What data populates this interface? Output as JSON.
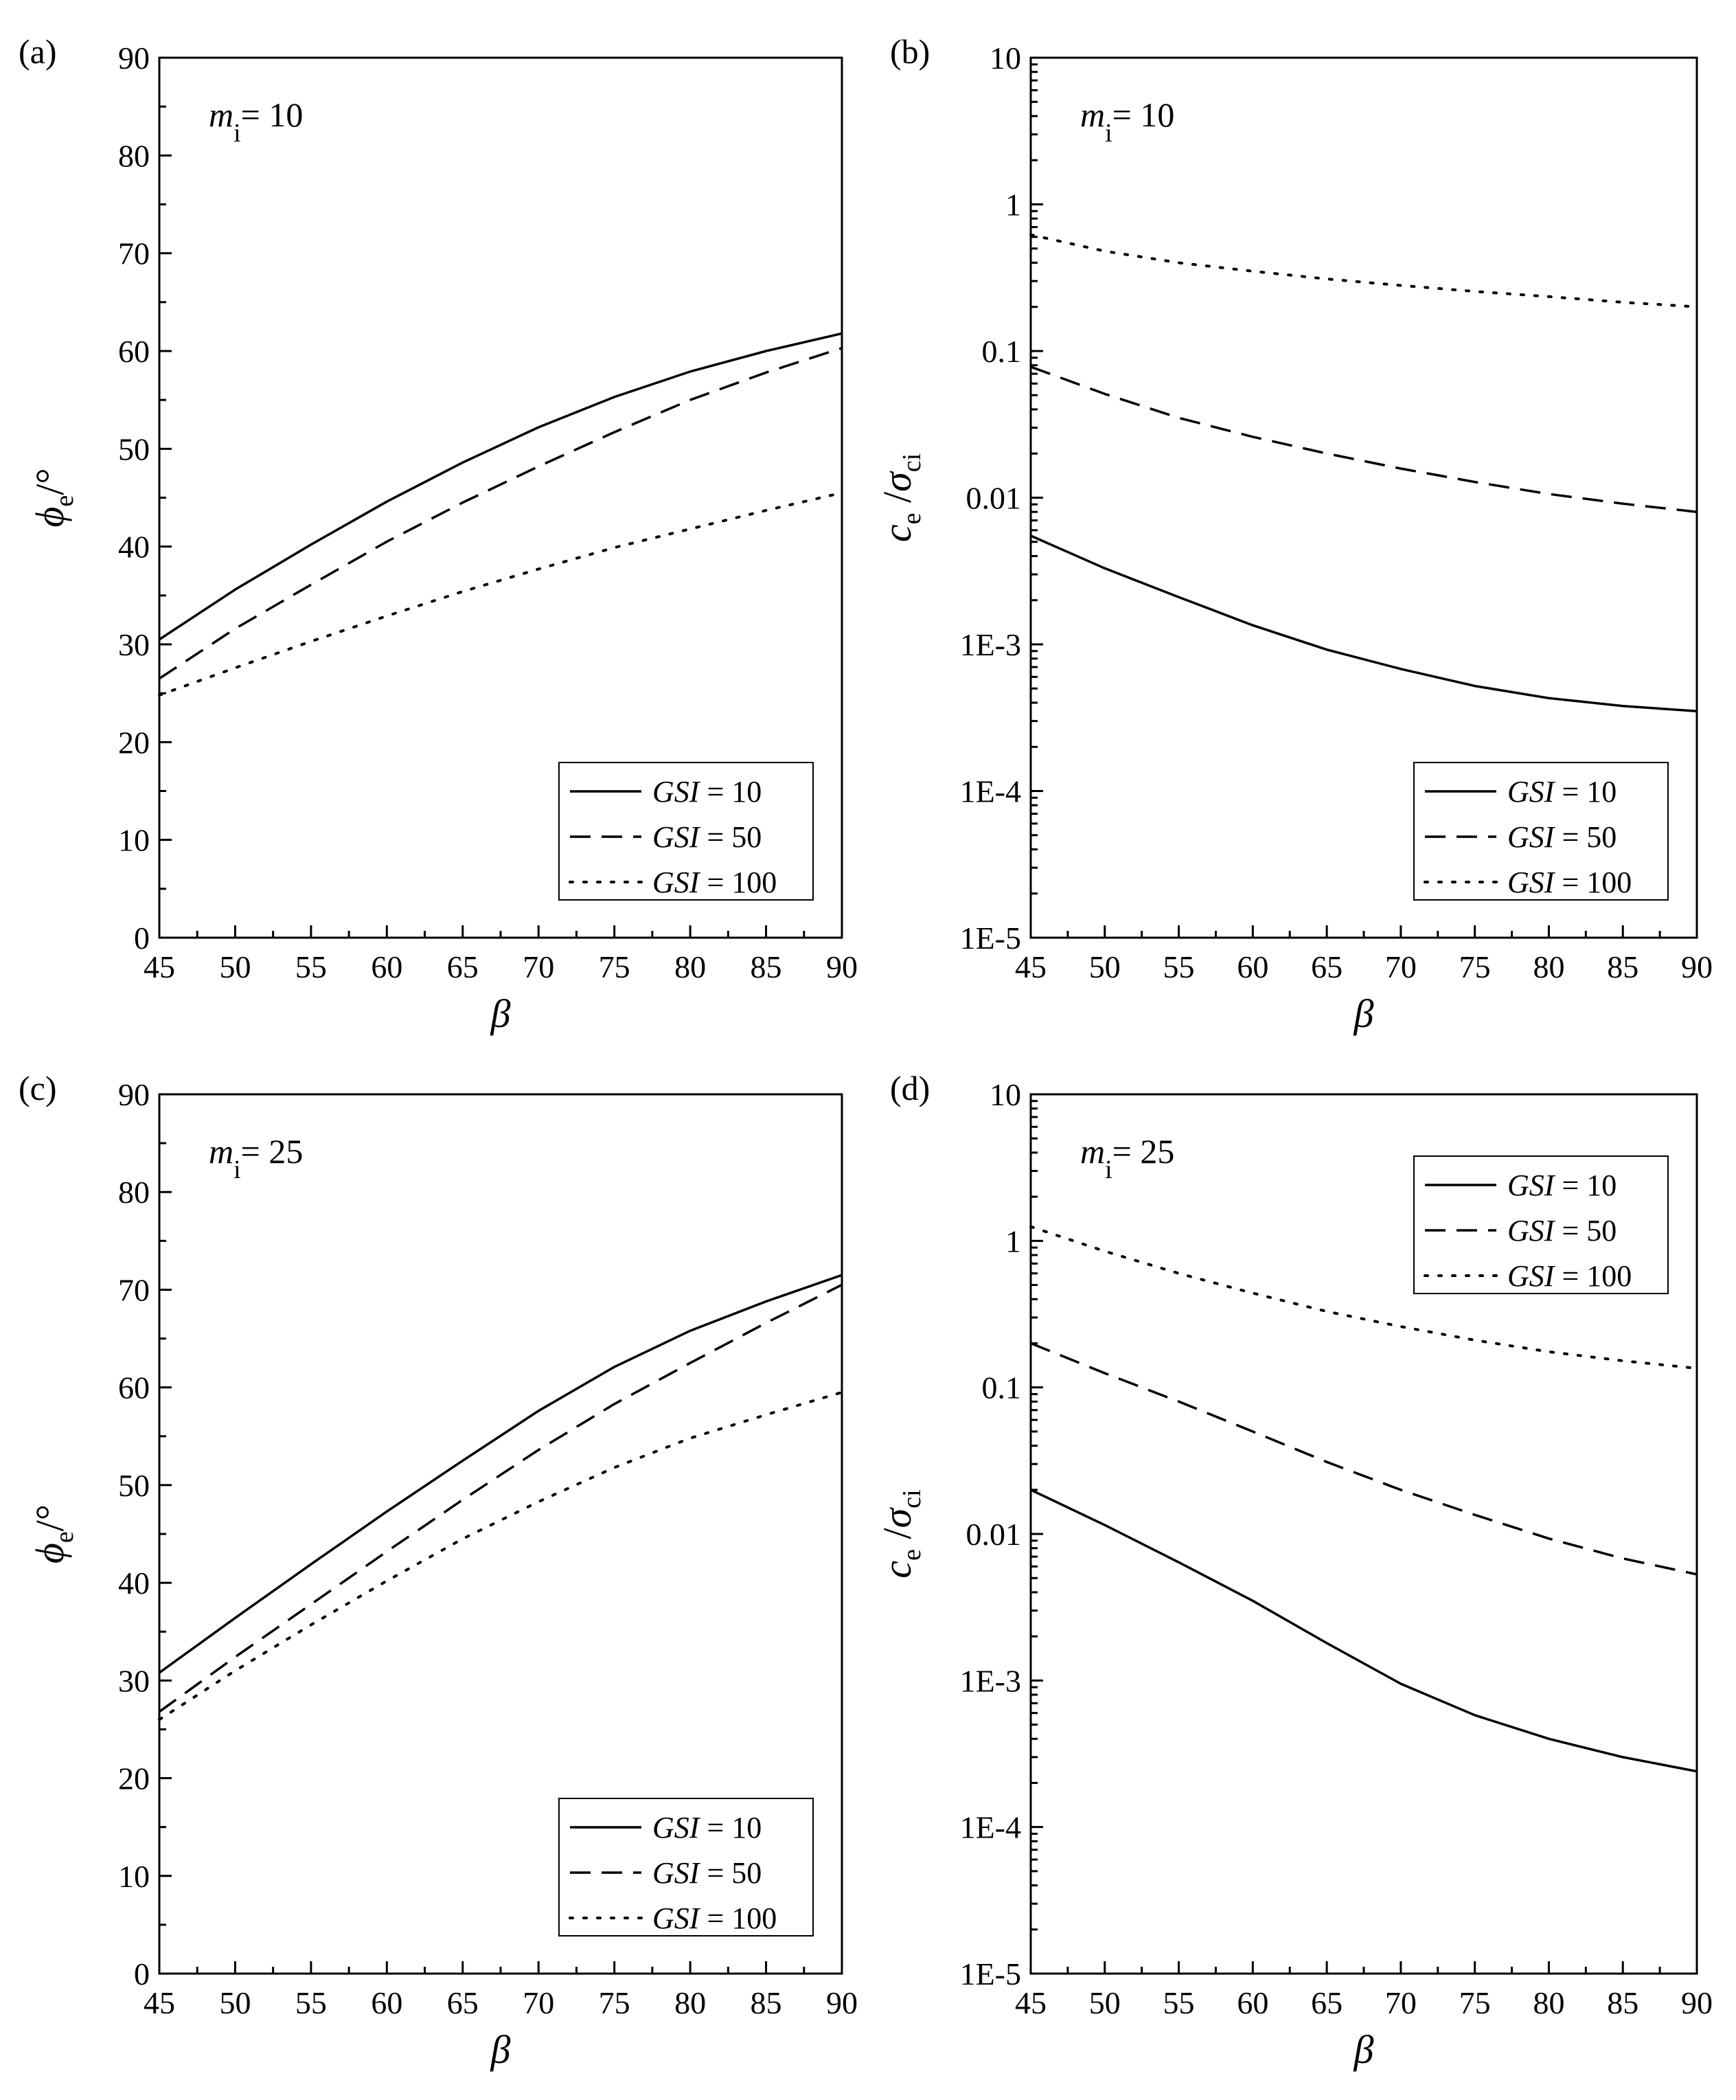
{
  "chart_data": [
    {
      "id": "a",
      "type": "line",
      "panel_label": "(a)",
      "annotation": {
        "var": "m",
        "sub": "i",
        "text": "= 10"
      },
      "xlabel": "β",
      "ylabel": {
        "main": "ϕ",
        "sub": "e",
        "suffix": "/°"
      },
      "yscale": "linear",
      "xlim": [
        45,
        90
      ],
      "ylim": [
        0,
        90
      ],
      "xticks": [
        "45",
        "50",
        "55",
        "60",
        "65",
        "70",
        "75",
        "80",
        "85",
        "90"
      ],
      "yticks": [
        "0",
        "10",
        "20",
        "30",
        "40",
        "50",
        "60",
        "70",
        "80",
        "90"
      ],
      "legend_position": "bottom-right",
      "x": [
        45,
        50,
        55,
        60,
        65,
        70,
        75,
        80,
        85,
        90
      ],
      "series": [
        {
          "name": "GSI = 10",
          "style": "solid",
          "values": [
            30.5,
            35.6,
            40.2,
            44.6,
            48.6,
            52.2,
            55.3,
            57.9,
            60.0,
            61.8
          ]
        },
        {
          "name": "GSI = 50",
          "style": "dashed",
          "values": [
            26.5,
            31.6,
            36.1,
            40.5,
            44.5,
            48.2,
            51.7,
            55.0,
            57.8,
            60.3
          ]
        },
        {
          "name": "GSI = 100",
          "style": "dotted",
          "values": [
            24.8,
            27.6,
            30.3,
            32.9,
            35.4,
            37.7,
            39.9,
            41.8,
            43.7,
            45.5
          ]
        }
      ]
    },
    {
      "id": "b",
      "type": "line",
      "panel_label": "(b)",
      "annotation": {
        "var": "m",
        "sub": "i",
        "text": "= 10"
      },
      "xlabel": "β",
      "ylabel": {
        "main": "c",
        "sub": "e",
        "main2": "σ",
        "sub2": "ci"
      },
      "yscale": "log",
      "xlim": [
        45,
        90
      ],
      "ylim": [
        1e-05,
        10
      ],
      "xticks": [
        "45",
        "50",
        "55",
        "60",
        "65",
        "70",
        "75",
        "80",
        "85",
        "90"
      ],
      "yticks": [
        "1E-5",
        "1E-4",
        "1E-3",
        "0.01",
        "0.1",
        "1",
        "10"
      ],
      "legend_position": "bottom-right",
      "x": [
        45,
        50,
        55,
        60,
        65,
        70,
        75,
        80,
        85,
        90
      ],
      "series": [
        {
          "name": "GSI = 10",
          "style": "solid",
          "values": [
            0.0055,
            0.0033,
            0.0021,
            0.00135,
            0.00092,
            0.00068,
            0.00052,
            0.00043,
            0.00038,
            0.00035
          ]
        },
        {
          "name": "GSI = 50",
          "style": "dashed",
          "values": [
            0.078,
            0.051,
            0.035,
            0.026,
            0.02,
            0.0158,
            0.0128,
            0.0106,
            0.0091,
            0.008
          ]
        },
        {
          "name": "GSI = 100",
          "style": "dotted",
          "values": [
            0.62,
            0.48,
            0.4,
            0.35,
            0.31,
            0.28,
            0.255,
            0.235,
            0.215,
            0.2
          ]
        }
      ]
    },
    {
      "id": "c",
      "type": "line",
      "panel_label": "(c)",
      "annotation": {
        "var": "m",
        "sub": "i",
        "text": "= 25"
      },
      "xlabel": "β",
      "ylabel": {
        "main": "ϕ",
        "sub": "e",
        "suffix": "/°"
      },
      "yscale": "linear",
      "xlim": [
        45,
        90
      ],
      "ylim": [
        0,
        90
      ],
      "xticks": [
        "45",
        "50",
        "55",
        "60",
        "65",
        "70",
        "75",
        "80",
        "85",
        "90"
      ],
      "yticks": [
        "0",
        "10",
        "20",
        "30",
        "40",
        "50",
        "60",
        "70",
        "80",
        "90"
      ],
      "legend_position": "bottom-right",
      "x": [
        45,
        50,
        55,
        60,
        65,
        70,
        75,
        80,
        85,
        90
      ],
      "series": [
        {
          "name": "GSI = 10",
          "style": "solid",
          "values": [
            30.8,
            36.4,
            41.9,
            47.3,
            52.5,
            57.6,
            62.1,
            65.8,
            68.8,
            71.5
          ]
        },
        {
          "name": "GSI = 50",
          "style": "dashed",
          "values": [
            26.8,
            32.4,
            37.8,
            43.2,
            48.5,
            53.6,
            58.3,
            62.5,
            66.6,
            70.5
          ]
        },
        {
          "name": "GSI = 100",
          "style": "dotted",
          "values": [
            26.0,
            31.0,
            35.7,
            40.2,
            44.5,
            48.3,
            51.8,
            54.8,
            57.2,
            59.5
          ]
        }
      ]
    },
    {
      "id": "d",
      "type": "line",
      "panel_label": "(d)",
      "annotation": {
        "var": "m",
        "sub": "i",
        "text": "= 25"
      },
      "xlabel": "β",
      "ylabel": {
        "main": "c",
        "sub": "e",
        "main2": "σ",
        "sub2": "ci"
      },
      "yscale": "log",
      "xlim": [
        45,
        90
      ],
      "ylim": [
        1e-05,
        10
      ],
      "xticks": [
        "45",
        "50",
        "55",
        "60",
        "65",
        "70",
        "75",
        "80",
        "85",
        "90"
      ],
      "yticks": [
        "1E-5",
        "1E-4",
        "1E-3",
        "0.01",
        "0.1",
        "1",
        "10"
      ],
      "legend_position": "top-right",
      "x": [
        45,
        50,
        55,
        60,
        65,
        70,
        75,
        80,
        85,
        90
      ],
      "series": [
        {
          "name": "GSI = 10",
          "style": "solid",
          "values": [
            0.02,
            0.0115,
            0.0064,
            0.0035,
            0.0018,
            0.00095,
            0.00058,
            0.0004,
            0.0003,
            0.00024
          ]
        },
        {
          "name": "GSI = 50",
          "style": "dashed",
          "values": [
            0.2,
            0.125,
            0.08,
            0.05,
            0.031,
            0.02,
            0.0135,
            0.0093,
            0.0068,
            0.0053
          ]
        },
        {
          "name": "GSI = 100",
          "style": "dotted",
          "values": [
            1.25,
            0.85,
            0.6,
            0.44,
            0.33,
            0.26,
            0.21,
            0.175,
            0.152,
            0.135
          ]
        }
      ]
    }
  ]
}
